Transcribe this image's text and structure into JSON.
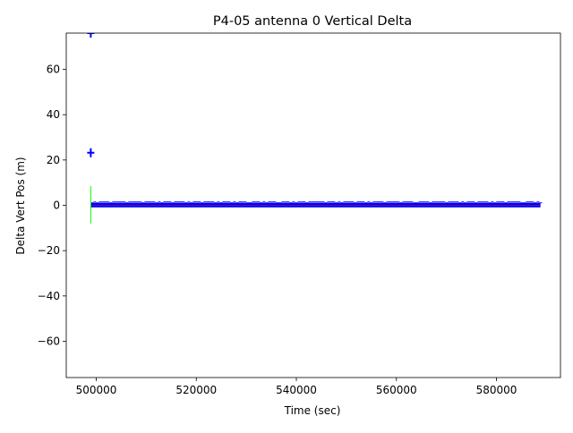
{
  "chart_data": {
    "type": "scatter",
    "title": "P4-05 antenna 0 Vertical Delta",
    "xlabel": "Time (sec)",
    "ylabel": "Delta Vert Pos (m)",
    "xlim": [
      494000,
      592800
    ],
    "ylim": [
      -76,
      76
    ],
    "xticks": [
      500000,
      520000,
      540000,
      560000,
      580000
    ],
    "xtick_labels": [
      "500000",
      "520000",
      "540000",
      "560000",
      "580000"
    ],
    "yticks": [
      -60,
      -40,
      -20,
      0,
      20,
      40,
      60
    ],
    "ytick_labels": [
      "−60",
      "−40",
      "−20",
      "0",
      "20",
      "40",
      "60"
    ],
    "grid": false,
    "colors": {
      "band": "#0000ff",
      "outlier": "#0000ff",
      "error_bar": "#00ff00",
      "axes": "#000000"
    },
    "series": [
      {
        "values_summary": "dense band of points near zero",
        "x_range": [
          498900,
          588800
        ],
        "y_band": [
          -0.9,
          1.1
        ]
      }
    ],
    "outliers": [
      {
        "x": 498900,
        "y": 76
      },
      {
        "x": 498900,
        "y": 23.2
      }
    ],
    "error_bars": [
      {
        "x": 498900,
        "y_low": -8,
        "y_high": 8.5
      }
    ],
    "reference_lines": [
      {
        "y": 0,
        "x_range": [
          498900,
          588800
        ]
      }
    ]
  }
}
